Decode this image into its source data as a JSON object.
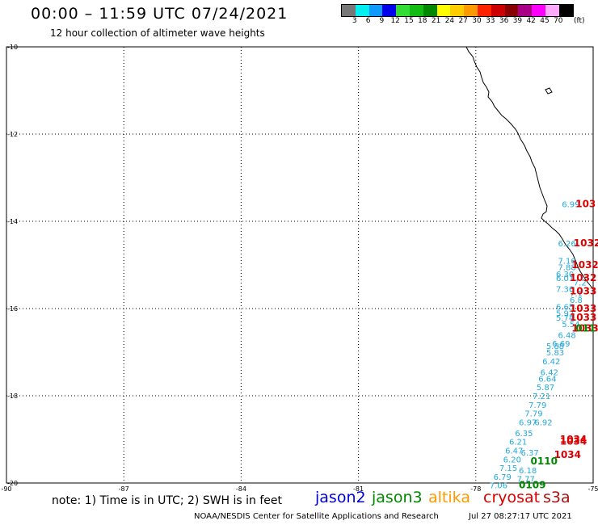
{
  "header": {
    "title": "00:00 – 11:59 UTC 07/24/2021",
    "subtitle": "12 hour collection of altimeter wave heights"
  },
  "colorbar": {
    "colors": [
      "#777777",
      "#00eeee",
      "#1199ff",
      "#0000ee",
      "#33dd33",
      "#11bb11",
      "#008800",
      "#ffff00",
      "#ffcc00",
      "#ff9900",
      "#ff2200",
      "#cc0000",
      "#880000",
      "#aa0088",
      "#ff00ff",
      "#ffaaff",
      "#000000"
    ],
    "labels": [
      "3",
      "6",
      "9",
      "12",
      "15",
      "18",
      "21",
      "24",
      "27",
      "30",
      "33",
      "36",
      "39",
      "42",
      "45",
      "70"
    ],
    "unit": "(ft)"
  },
  "map": {
    "lon_range": [
      -90,
      -75
    ],
    "lat_range": [
      -20,
      -10
    ],
    "x_ticks": [
      "-90",
      "-87",
      "-84",
      "-81",
      "-78",
      "-75"
    ],
    "y_ticks": [
      "-10",
      "-12",
      "-14",
      "-16",
      "-18",
      "-20"
    ],
    "grid": "dotted",
    "observations_jason": [
      {
        "lon": -75.8,
        "lat": -13.6,
        "text": "6.99"
      },
      {
        "lon": -75.9,
        "lat": -14.5,
        "text": "6.26"
      },
      {
        "lon": -75.9,
        "lat": -14.9,
        "text": "7.16"
      },
      {
        "lon": -75.9,
        "lat": -15.05,
        "text": "7.88"
      },
      {
        "lon": -75.95,
        "lat": -15.2,
        "text": "6.30"
      },
      {
        "lon": -75.95,
        "lat": -15.3,
        "text": "6.01"
      },
      {
        "lon": -75.5,
        "lat": -15.4,
        "text": "7.2"
      },
      {
        "lon": -75.95,
        "lat": -15.55,
        "text": "7.36"
      },
      {
        "lon": -75.6,
        "lat": -15.65,
        "text": "7.1"
      },
      {
        "lon": -75.6,
        "lat": -15.8,
        "text": "6.8"
      },
      {
        "lon": -75.95,
        "lat": -15.95,
        "text": "6.65"
      },
      {
        "lon": -75.95,
        "lat": -16.1,
        "text": "5.92"
      },
      {
        "lon": -75.95,
        "lat": -16.2,
        "text": "5.74"
      },
      {
        "lon": -75.8,
        "lat": -16.35,
        "text": "5.54"
      },
      {
        "lon": -75.9,
        "lat": -16.6,
        "text": "6.48"
      },
      {
        "lon": -76.05,
        "lat": -16.8,
        "text": "6.69"
      },
      {
        "lon": -76.2,
        "lat": -16.85,
        "text": "5.88"
      },
      {
        "lon": -76.2,
        "lat": -17.0,
        "text": "5.83"
      },
      {
        "lon": -76.3,
        "lat": -17.2,
        "text": "6.42"
      },
      {
        "lon": -76.35,
        "lat": -17.45,
        "text": "6.42"
      },
      {
        "lon": -76.4,
        "lat": -17.6,
        "text": "6.64"
      },
      {
        "lon": -76.45,
        "lat": -17.8,
        "text": "5.87"
      },
      {
        "lon": -76.55,
        "lat": -18.0,
        "text": "7.21"
      },
      {
        "lon": -76.65,
        "lat": -18.2,
        "text": "7.79"
      },
      {
        "lon": -76.75,
        "lat": -18.4,
        "text": "7.79"
      },
      {
        "lon": -76.9,
        "lat": -18.6,
        "text": "6.97"
      },
      {
        "lon": -76.5,
        "lat": -18.6,
        "text": "6.92"
      },
      {
        "lon": -77.0,
        "lat": -18.85,
        "text": "6.35"
      },
      {
        "lon": -77.15,
        "lat": -19.05,
        "text": "6.21"
      },
      {
        "lon": -77.25,
        "lat": -19.25,
        "text": "6.47"
      },
      {
        "lon": -77.3,
        "lat": -19.45,
        "text": "6.20"
      },
      {
        "lon": -77.4,
        "lat": -19.65,
        "text": "7.15"
      },
      {
        "lon": -77.55,
        "lat": -19.85,
        "text": "6.79"
      },
      {
        "lon": -77.65,
        "lat": -20.05,
        "text": "7.06"
      },
      {
        "lon": -76.85,
        "lat": -19.3,
        "text": "6.37"
      },
      {
        "lon": -76.9,
        "lat": -19.7,
        "text": "6.18"
      },
      {
        "lon": -76.95,
        "lat": -19.9,
        "text": "7.77"
      }
    ],
    "observations_cryosat": [
      {
        "lon": -75.45,
        "lat": -13.6,
        "text": "103"
      },
      {
        "lon": -75.5,
        "lat": -14.5,
        "text": "1032"
      },
      {
        "lon": -75.55,
        "lat": -15.0,
        "text": "1032"
      },
      {
        "lon": -75.6,
        "lat": -15.3,
        "text": "1032"
      },
      {
        "lon": -75.6,
        "lat": -15.6,
        "text": "1033"
      },
      {
        "lon": -75.6,
        "lat": -16.0,
        "text": "1033"
      },
      {
        "lon": -75.6,
        "lat": -16.2,
        "text": "1033"
      },
      {
        "lon": -75.55,
        "lat": -16.45,
        "text": "1033"
      },
      {
        "lon": -75.85,
        "lat": -19.0,
        "text": "1034"
      },
      {
        "lon": -75.85,
        "lat": -19.05,
        "text": "1034"
      },
      {
        "lon": -76.0,
        "lat": -19.35,
        "text": "1034"
      }
    ],
    "observations_jason3": [
      {
        "lon": -75.45,
        "lat": -16.45,
        "text": "011"
      },
      {
        "lon": -76.6,
        "lat": -19.5,
        "text": "0110"
      },
      {
        "lon": -76.9,
        "lat": -20.05,
        "text": "0109"
      }
    ],
    "colors": {
      "jason2": "#0000dd",
      "jason3": "#008800",
      "altika": "#ff9900",
      "cryosat": "#dd0000",
      "obs": "#22aadd"
    }
  },
  "footer": {
    "note": "note:  1) Time is in UTC; 2) SWH is in feet",
    "sat_jason2": "jason2",
    "sat_jason3": "jason3",
    "sat_altika": "altika",
    "sat_cryosat": "cryosat",
    "sat_s3a": "s3a",
    "credit": "NOAA/NESDIS Center for Satellite Applications and Research",
    "timestamp": "Jul 27 08:27:17 UTC 2021"
  }
}
